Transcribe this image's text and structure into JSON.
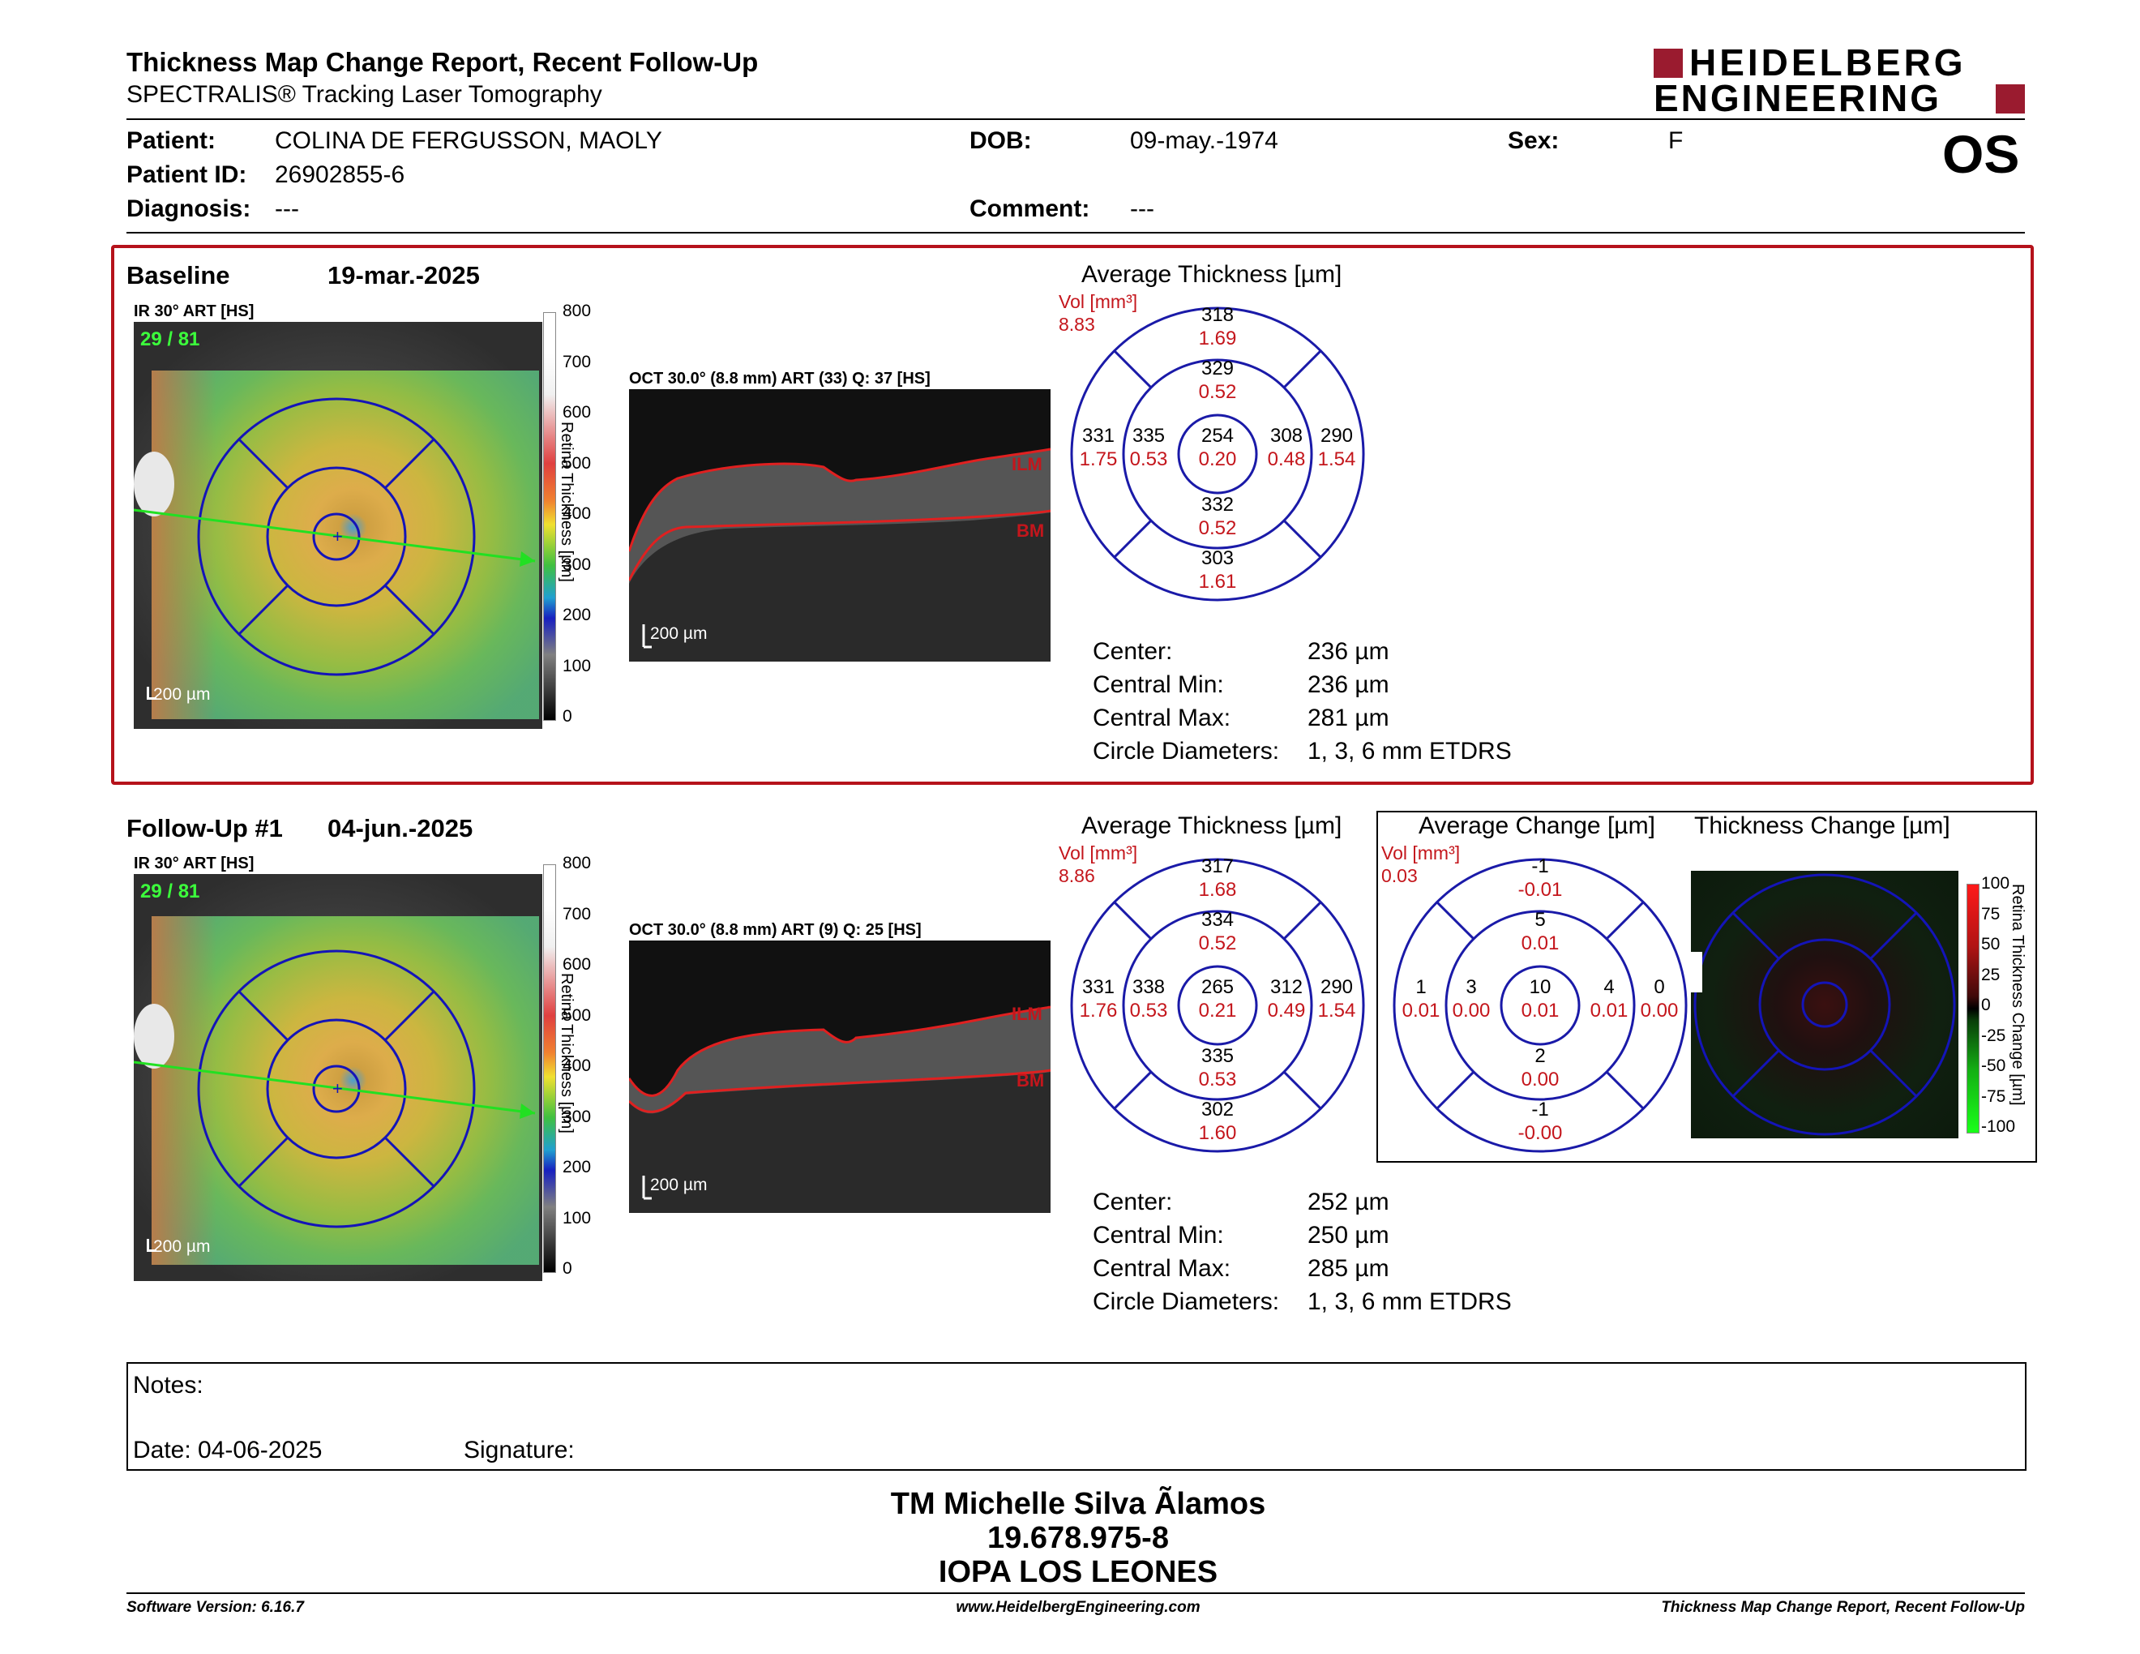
{
  "header": {
    "title": "Thickness Map Change Report, Recent Follow-Up",
    "subtitle": "SPECTRALIS® Tracking Laser Tomography",
    "logo_line1": "HEIDELBERG",
    "logo_line2": "ENGINEERING",
    "eye": "OS"
  },
  "patient": {
    "patient_label": "Patient:",
    "patient_value": "COLINA DE FERGUSSON, MAOLY",
    "dob_label": "DOB:",
    "dob_value": "09-may.-1974",
    "sex_label": "Sex:",
    "sex_value": "F",
    "id_label": "Patient ID:",
    "id_value": "26902855-6",
    "diagnosis_label": "Diagnosis:",
    "diagnosis_value": "---",
    "comment_label": "Comment:",
    "comment_value": "---"
  },
  "baseline": {
    "label": "Baseline",
    "date": "19-mar.-2025",
    "ir_label": "IR 30° ART [HS]",
    "ir_art": "29 / 81",
    "scale_bar": "200 µm",
    "oct_label": "OCT 30.0° (8.8 mm) ART (33) Q: 37 [HS]",
    "ilm": "ILM",
    "bm": "BM",
    "avg_title": "Average Thickness [µm]",
    "vol_label": "Vol [mm³]",
    "vol_value": "8.83",
    "cells": {
      "top_outer": [
        "318",
        "1.69"
      ],
      "top_inner": [
        "329",
        "0.52"
      ],
      "left_outer": [
        "331",
        "1.75"
      ],
      "left_inner": [
        "335",
        "0.53"
      ],
      "center": [
        "254",
        "0.20"
      ],
      "right_inner": [
        "308",
        "0.48"
      ],
      "right_outer": [
        "290",
        "1.54"
      ],
      "bottom_inner": [
        "332",
        "0.52"
      ],
      "bottom_outer": [
        "303",
        "1.61"
      ]
    },
    "stats": [
      [
        "Center:",
        "236 µm"
      ],
      [
        "Central Min:",
        "236 µm"
      ],
      [
        "Central Max:",
        "281 µm"
      ],
      [
        "Circle Diameters:",
        "1, 3, 6 mm ETDRS"
      ]
    ]
  },
  "followup": {
    "label": "Follow-Up #1",
    "date": "04-jun.-2025",
    "ir_label": "IR 30° ART [HS]",
    "ir_art": "29 / 81",
    "scale_bar": "200 µm",
    "oct_label": "OCT 30.0° (8.8 mm) ART (9) Q: 25 [HS]",
    "ilm": "ILM",
    "bm": "BM",
    "avg_title": "Average Thickness [µm]",
    "vol_label": "Vol [mm³]",
    "vol_value": "8.86",
    "cells": {
      "top_outer": [
        "317",
        "1.68"
      ],
      "top_inner": [
        "334",
        "0.52"
      ],
      "left_outer": [
        "331",
        "1.76"
      ],
      "left_inner": [
        "338",
        "0.53"
      ],
      "center": [
        "265",
        "0.21"
      ],
      "right_inner": [
        "312",
        "0.49"
      ],
      "right_outer": [
        "290",
        "1.54"
      ],
      "bottom_inner": [
        "335",
        "0.53"
      ],
      "bottom_outer": [
        "302",
        "1.60"
      ]
    },
    "stats": [
      [
        "Center:",
        "252 µm"
      ],
      [
        "Central Min:",
        "250 µm"
      ],
      [
        "Central Max:",
        "285 µm"
      ],
      [
        "Circle Diameters:",
        "1, 3, 6 mm ETDRS"
      ]
    ],
    "change_title": "Average Change [µm]",
    "change_vol_label": "Vol [mm³]",
    "change_vol_value": "0.03",
    "change_cells": {
      "top_outer": [
        "-1",
        "-0.01"
      ],
      "top_inner": [
        "5",
        "0.01"
      ],
      "left_outer": [
        "1",
        "0.01"
      ],
      "left_inner": [
        "3",
        "0.00"
      ],
      "center": [
        "10",
        "0.01"
      ],
      "right_inner": [
        "4",
        "0.01"
      ],
      "right_outer": [
        "0",
        "0.00"
      ],
      "bottom_inner": [
        "2",
        "0.00"
      ],
      "bottom_outer": [
        "-1",
        "-0.00"
      ]
    },
    "thickness_change_title": "Thickness Change [µm]",
    "change_scale": [
      "100",
      "75",
      "50",
      "25",
      "0",
      "-25",
      "-50",
      "-75",
      "-100"
    ],
    "change_scale_label": "Retina Thickness Change [µm]"
  },
  "thickness_scale": [
    "800",
    "700",
    "600",
    "500",
    "400",
    "300",
    "200",
    "100",
    "0"
  ],
  "thickness_scale_label": "Retina Thickness [µm]",
  "notes": {
    "notes_label": "Notes:",
    "date_label": "Date: 04-06-2025",
    "signature_label": "Signature:"
  },
  "signoff": {
    "name": "TM Michelle Silva Ãlamos",
    "id": "19.678.975-8",
    "org": "IOPA LOS LEONES"
  },
  "footer": {
    "version": "Software Version: 6.16.7",
    "website": "www.HeidelbergEngineering.com",
    "report": "Thickness Map Change Report, Recent Follow-Up"
  },
  "colors": {
    "brand_red": "#9a1b2f",
    "section_border": "#b5121b",
    "value_red": "#c4161c",
    "circle_blue": "#1a1aa8"
  }
}
